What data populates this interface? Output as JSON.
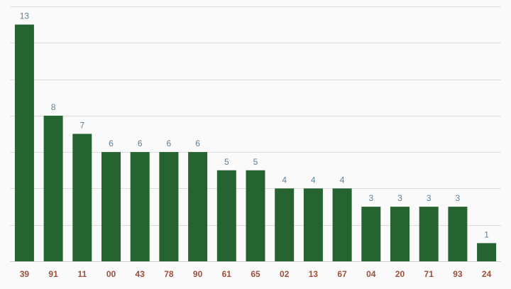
{
  "chart_data": {
    "type": "bar",
    "title": "",
    "xlabel": "",
    "ylabel": "",
    "categories": [
      "39",
      "91",
      "11",
      "00",
      "43",
      "78",
      "90",
      "61",
      "65",
      "02",
      "13",
      "67",
      "04",
      "20",
      "71",
      "93",
      "24"
    ],
    "values": [
      13,
      8,
      7,
      6,
      6,
      6,
      6,
      5,
      5,
      4,
      4,
      4,
      3,
      3,
      3,
      3,
      1
    ],
    "ylim": [
      0,
      14
    ],
    "grid": true,
    "legend": "none",
    "data_labels": true
  },
  "colors": {
    "bar": "#256331",
    "value_label": "#5f7f96",
    "tick_label": "#9c4f3c",
    "grid": "#dcdcdc",
    "background": "#fafafa"
  }
}
